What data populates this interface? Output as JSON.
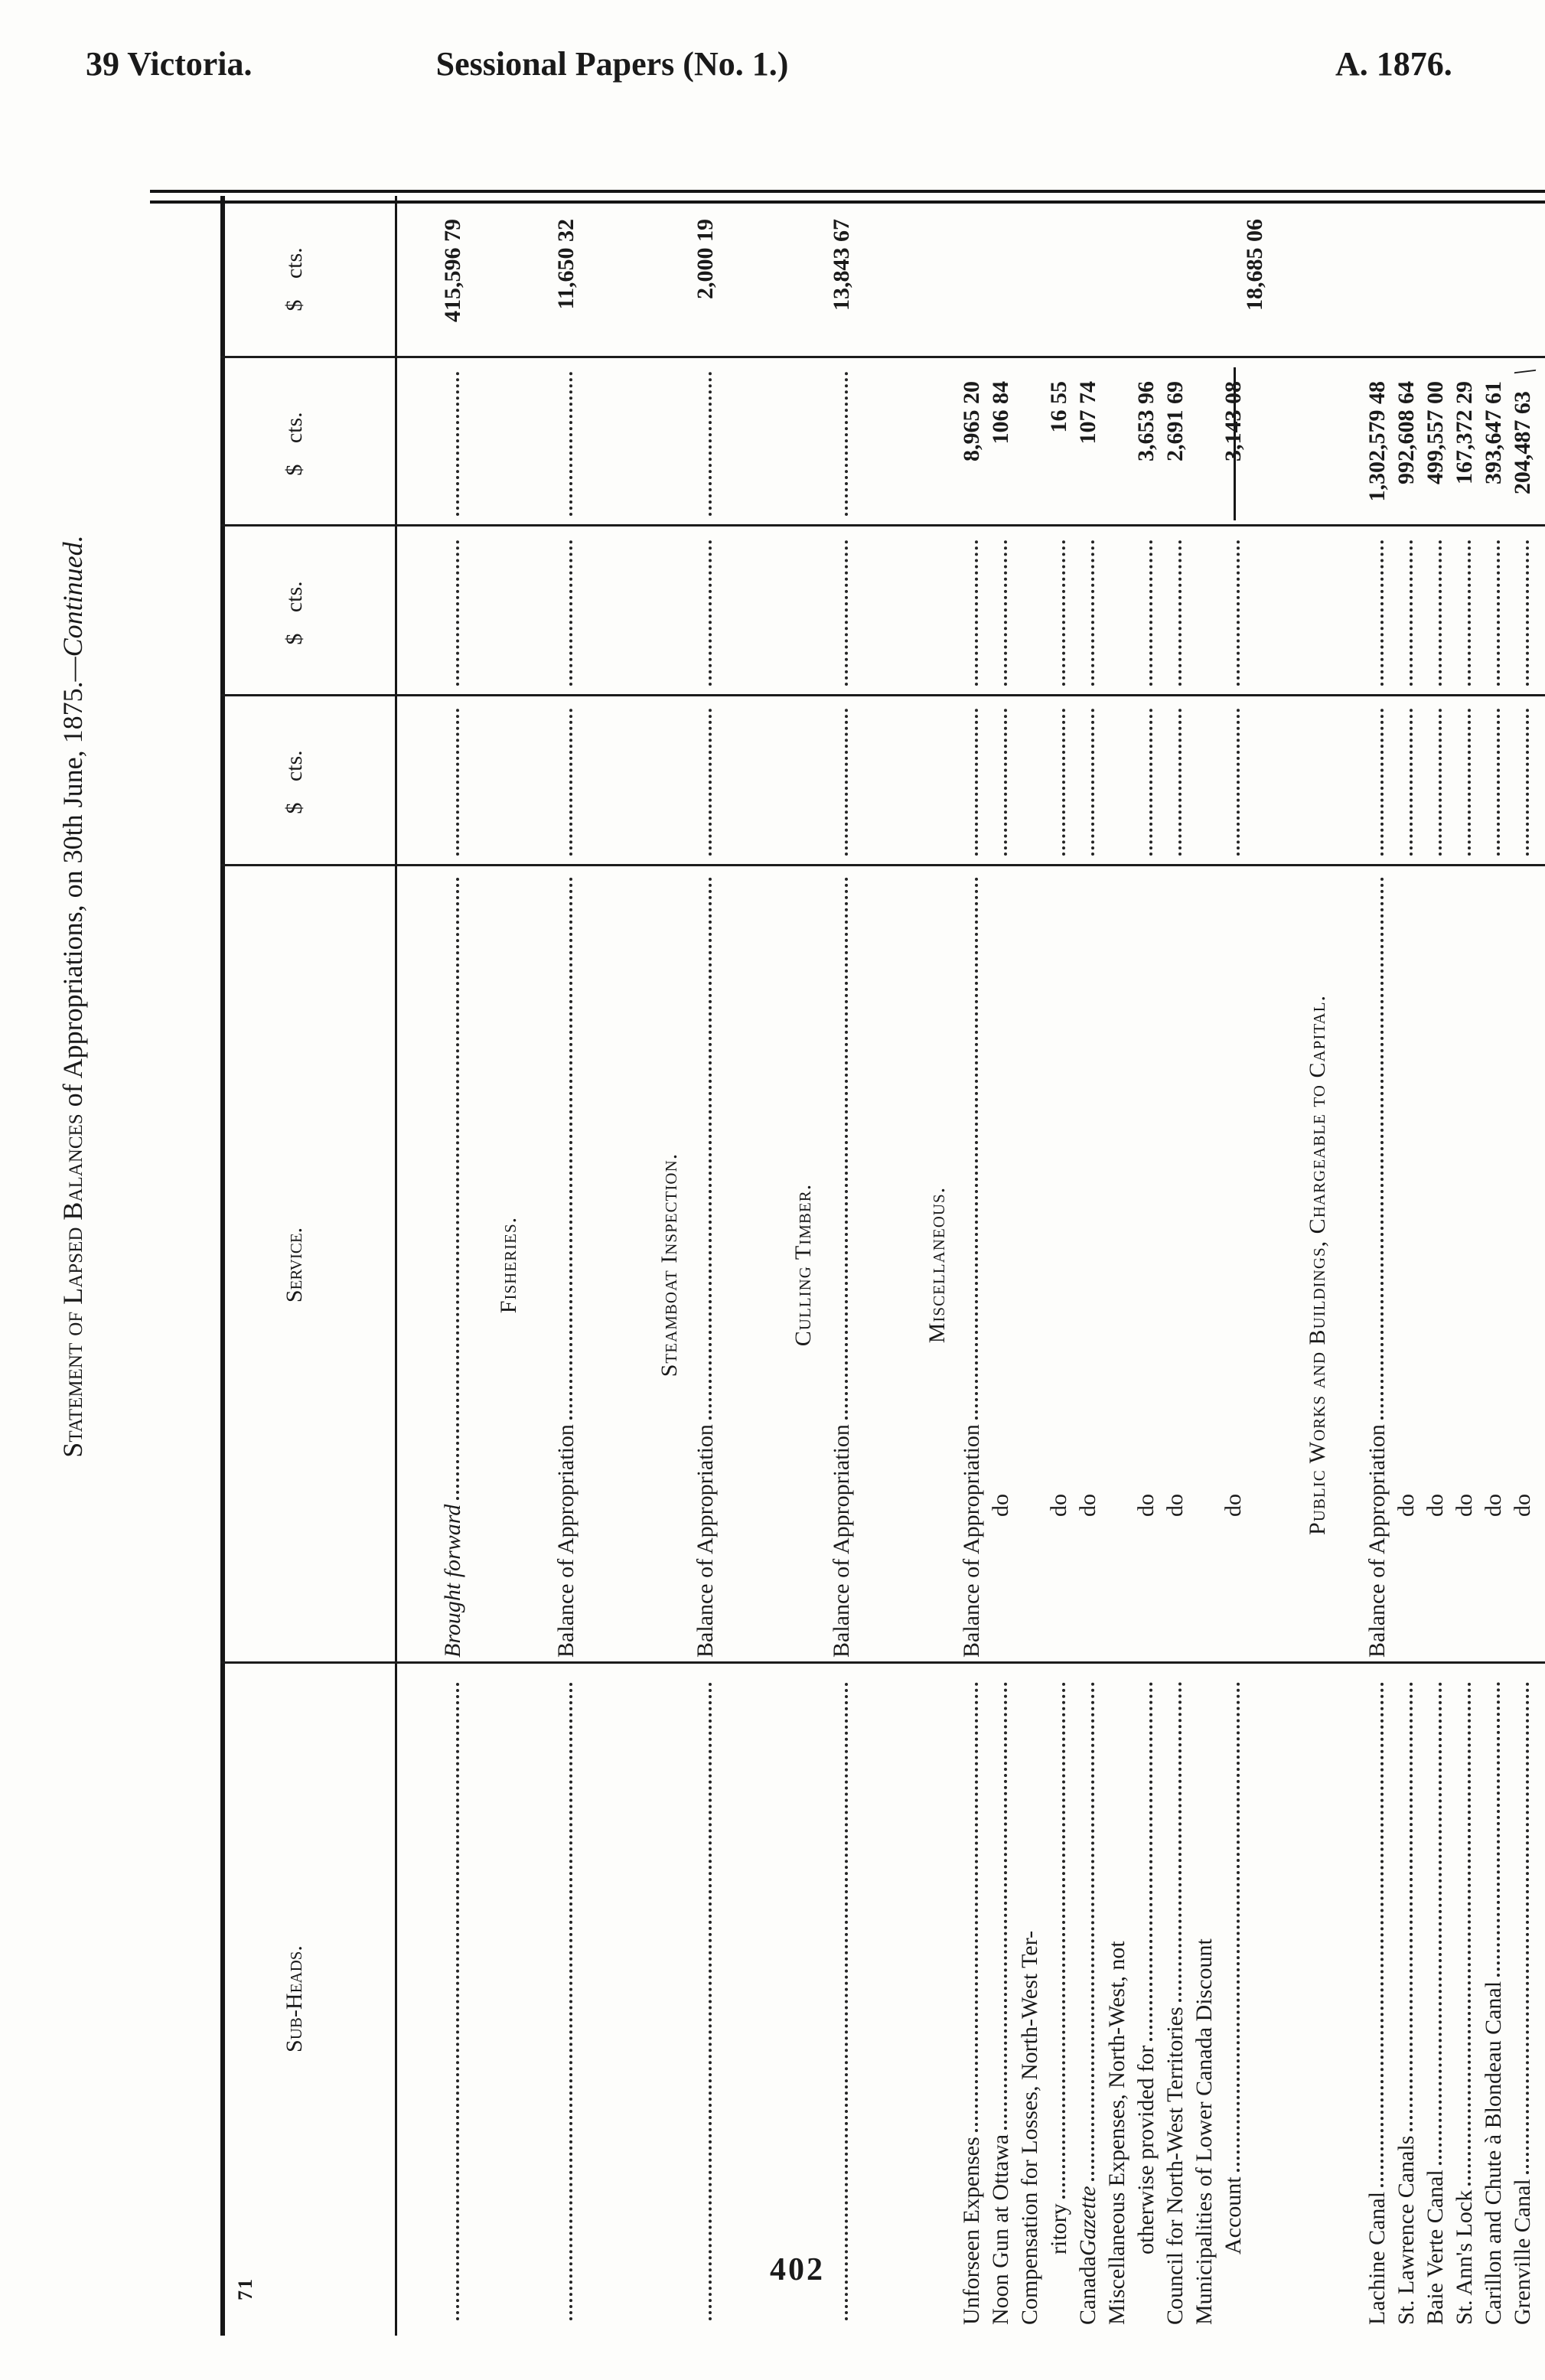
{
  "page_header": {
    "left": "39 Victoria.",
    "center": "Sessional Papers (No. 1.)",
    "right": "A. 1876."
  },
  "page_number": "402",
  "signature_mark": "71",
  "table": {
    "title": {
      "main": "Statement of Lapsed Balances",
      "mid": " of Appropriations, on 30th June, 1875.",
      "continued": "—Continued."
    },
    "columns": {
      "subheads": "Sub-Heads.",
      "service": "Service.",
      "money": "$ cts."
    },
    "rows": [
      {
        "sub": "",
        "sub_fill": true,
        "svc": "Brought forward",
        "svc_it": true,
        "svc_fill": true,
        "ld": "dcb",
        "a": "415,596 79"
      },
      {
        "heading": "Fisheries."
      },
      {
        "sub": "",
        "sub_fill": true,
        "svc": "Balance of Appropriation",
        "svc_fill": true,
        "ld": "dcb",
        "a": "11,650 32"
      },
      {
        "heading": "Steamboat Inspection."
      },
      {
        "sub": "",
        "sub_fill": true,
        "svc": "Balance of Appropriation",
        "svc_fill": true,
        "ld": "dcb",
        "a": "2,000 19"
      },
      {
        "heading": "Culling Timber."
      },
      {
        "sub": "",
        "sub_fill": true,
        "svc": "Balance of Appropriation",
        "svc_fill": true,
        "ld": "dcb",
        "a": "13,843 67"
      },
      {
        "heading": "Miscellaneous."
      },
      {
        "sub": "Unforseen Expenses",
        "sub_fill": true,
        "svc": "Balance of Appropriation",
        "svc_fill": true,
        "ld": "dc",
        "b": "8,965 20"
      },
      {
        "sub": "Noon Gun at Ottawa ",
        "sub_fill": true,
        "svc": "do",
        "svc_do": true,
        "ld": "dc",
        "b": "106 84"
      },
      {
        "sub": "Compensation for Losses, North-West Ter-"
      },
      {
        "sub": "ritory ",
        "sub_ind": true,
        "sub_fill": true,
        "svc": "do",
        "svc_do": true,
        "ld": "dc",
        "b": "16 55"
      },
      {
        "sub": "Canada ",
        "sub_it2": "Gazette",
        "sub_fill": true,
        "svc": "do",
        "svc_do": true,
        "ld": "dc",
        "b": "107 74"
      },
      {
        "sub": "Miscellaneous Expenses, North-West, not"
      },
      {
        "sub": "otherwise provided for",
        "sub_ind": true,
        "sub_fill": true,
        "svc": "do",
        "svc_do": true,
        "ld": "dc",
        "b": "3,653 96"
      },
      {
        "sub": "Council for North-West Territories",
        "sub_fill": true,
        "svc": "do",
        "svc_do": true,
        "ld": "dc",
        "b": "2,691 69"
      },
      {
        "sub": "Municipalities of Lower Canada Discount"
      },
      {
        "sub": "Account",
        "sub_ind": true,
        "sub_fill": true,
        "svc": "do",
        "svc_do": true,
        "ld": "dc",
        "b": "3,143 08"
      },
      {
        "total": true,
        "a": "18,685 06"
      },
      {
        "heading": "Public Works and Buildings, Chargeable to Capital."
      },
      {
        "sub": "Lachine Canal ",
        "sub_fill": true,
        "svc": "Balance of Appropriation",
        "svc_fill": true,
        "ld": "dc",
        "b": "1,302,579 48"
      },
      {
        "sub": "St. Lawrence Canals ",
        "sub_fill": true,
        "svc": "do",
        "svc_do": true,
        "ld": "dc",
        "b": "992,608 64"
      },
      {
        "sub": "Baie Verte Canal",
        "sub_fill": true,
        "svc": "do",
        "svc_do": true,
        "ld": "dc",
        "b": "499,557 00"
      },
      {
        "sub": "St. Ann's Lock",
        "sub_fill": true,
        "svc": "do",
        "svc_do": true,
        "ld": "dc",
        "b": "167,372 29"
      },
      {
        "sub": "Carillon and Chute à Blondeau Canal",
        "sub_fill": true,
        "svc": "do",
        "svc_do": true,
        "ld": "dc",
        "b": "393,647 61"
      },
      {
        "sub": "Grenville Canal",
        "sub_fill": true,
        "svc": "do",
        "svc_do": true,
        "ld": "dc",
        "b": "204,487 63",
        "b_mark": "\\"
      }
    ]
  }
}
